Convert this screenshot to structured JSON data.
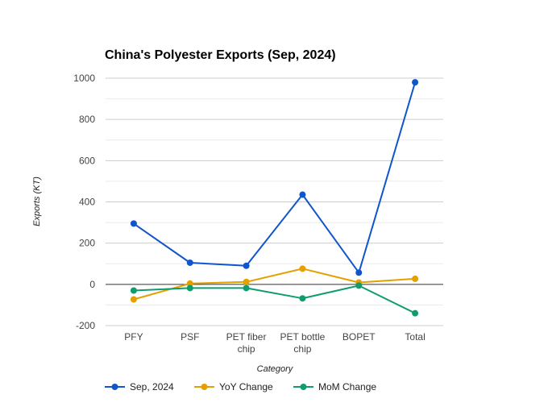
{
  "chart_data": {
    "type": "line",
    "title": "China's Polyester Exports (Sep, 2024)",
    "xlabel": "Category",
    "ylabel": "Exports (KT)",
    "categories": [
      "PFY",
      "PSF",
      "PET fiber chip",
      "PET bottle chip",
      "BOPET",
      "Total"
    ],
    "category_lines": [
      [
        "PFY"
      ],
      [
        "PSF"
      ],
      [
        "PET fiber",
        "chip"
      ],
      [
        "PET bottle",
        "chip"
      ],
      [
        "BOPET"
      ],
      [
        "Total"
      ]
    ],
    "ylim": [
      -200,
      1000
    ],
    "yticks": [
      -200,
      0,
      200,
      400,
      600,
      800,
      1000
    ],
    "minor_gridlines": true,
    "legend_position": "bottom",
    "series": [
      {
        "name": "Sep, 2024",
        "color": "#1155cc",
        "values": [
          295,
          105,
          90,
          435,
          57,
          980
        ]
      },
      {
        "name": "YoY Change",
        "color": "#e69f00",
        "values": [
          -73,
          4,
          12,
          76,
          9,
          27
        ]
      },
      {
        "name": "MoM Change",
        "color": "#0f9d70",
        "values": [
          -30,
          -18,
          -18,
          -68,
          -6,
          -140
        ]
      }
    ]
  }
}
